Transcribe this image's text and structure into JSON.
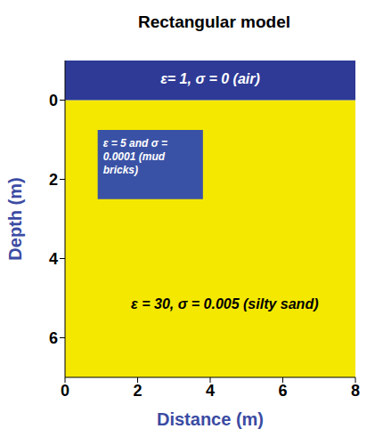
{
  "chart_data": {
    "type": "model",
    "title": "Rectangular model",
    "x_label": "Distance (m)",
    "y_label": "Depth (m)",
    "xlim": [
      0,
      8
    ],
    "ylim": [
      -1,
      7
    ],
    "xticks": [
      0,
      2,
      4,
      6,
      8
    ],
    "yticks": [
      0,
      2,
      4,
      6
    ],
    "regions": [
      {
        "label": "ε = 30, σ = 0.005 (silty sand)",
        "x": [
          0,
          8
        ],
        "depth": [
          0,
          7
        ],
        "color": "#f4e800"
      },
      {
        "label": "ε= 1, σ = 0 (air)",
        "x": [
          0,
          8
        ],
        "depth": [
          -1,
          0
        ],
        "color": "#2e3a96"
      },
      {
        "label": "ε = 5 and σ = 0.0001 (mud bricks)",
        "x": [
          0.9,
          3.8
        ],
        "depth": [
          0.75,
          2.5
        ],
        "color": "#3a52a6"
      }
    ]
  }
}
